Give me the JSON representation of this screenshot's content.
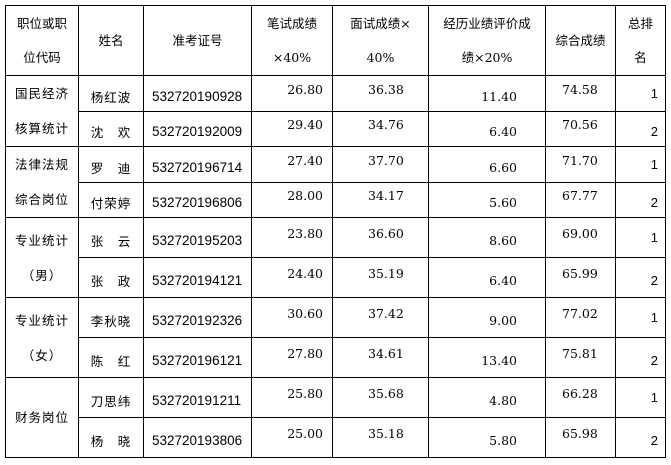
{
  "headers": {
    "position": [
      "职位或职",
      "位代码"
    ],
    "name": "姓名",
    "exam_id": "准考证号",
    "written": [
      "笔试成绩",
      "×40%"
    ],
    "interview": [
      "面试成绩×",
      "40%"
    ],
    "experience": [
      "经历业绩评价成",
      "绩×20%"
    ],
    "total": "综合成绩",
    "rank": [
      "总排",
      "名"
    ]
  },
  "groups": [
    {
      "label": [
        "国民经济",
        "核算统计"
      ],
      "rows": [
        {
          "name": "杨红波",
          "id": "532720190928",
          "written": "26.80",
          "interview": "36.38",
          "experience": "11.40",
          "total": "74.58",
          "rank": "1"
        },
        {
          "name": "沈　欢",
          "id": "532720192009",
          "written": "29.40",
          "interview": "34.76",
          "experience": "6.40",
          "total": "70.56",
          "rank": "2"
        }
      ]
    },
    {
      "label": [
        "法律法规",
        "综合岗位"
      ],
      "rows": [
        {
          "name": "罗　迪",
          "id": "532720196714",
          "written": "27.40",
          "interview": "37.70",
          "experience": "6.60",
          "total": "71.70",
          "rank": "1"
        },
        {
          "name": "付荣婷",
          "id": "532720196806",
          "written": "28.00",
          "interview": "34.17",
          "experience": "5.60",
          "total": "67.77",
          "rank": "2"
        }
      ]
    },
    {
      "label": [
        "专业统计",
        "（男）"
      ],
      "rows": [
        {
          "name": "张　云",
          "id": "532720195203",
          "written": "23.80",
          "interview": "36.60",
          "experience": "8.60",
          "total": "69.00",
          "rank": "1"
        },
        {
          "name": "张　政",
          "id": "532720194121",
          "written": "24.40",
          "interview": "35.19",
          "experience": "6.40",
          "total": "65.99",
          "rank": "2"
        }
      ]
    },
    {
      "label": [
        "专业统计",
        "（女）"
      ],
      "rows": [
        {
          "name": "李秋晓",
          "id": "532720192326",
          "written": "30.60",
          "interview": "37.42",
          "experience": "9.00",
          "total": "77.02",
          "rank": "1"
        },
        {
          "name": "陈　红",
          "id": "532720196121",
          "written": "27.80",
          "interview": "34.61",
          "experience": "13.40",
          "total": "75.81",
          "rank": "2"
        }
      ]
    },
    {
      "label": [
        "财务岗位"
      ],
      "rows": [
        {
          "name": "刀思纬",
          "id": "532720191211",
          "written": "25.80",
          "interview": "35.68",
          "experience": "4.80",
          "total": "66.28",
          "rank": "1"
        },
        {
          "name": "杨　晓",
          "id": "532720193806",
          "written": "25.00",
          "interview": "35.18",
          "experience": "5.80",
          "total": "65.98",
          "rank": "2"
        }
      ]
    }
  ]
}
